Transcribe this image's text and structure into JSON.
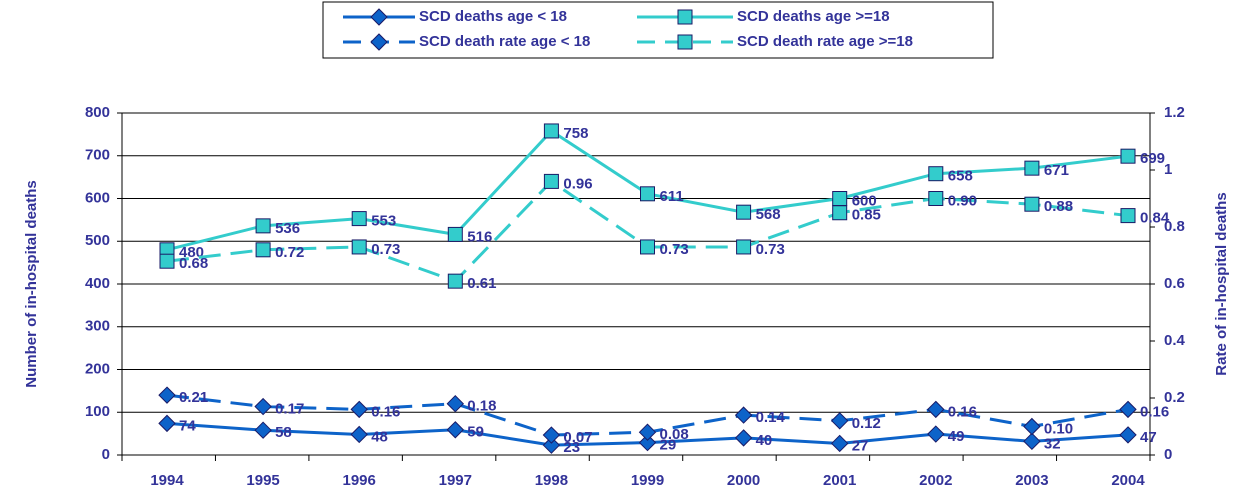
{
  "chart_data": {
    "type": "line",
    "categories": [
      "1994",
      "1995",
      "1996",
      "1997",
      "1998",
      "1999",
      "2000",
      "2001",
      "2002",
      "2003",
      "2004"
    ],
    "ylabel": "Number of in-hospital deaths",
    "y2label": "Rate of in-hospital deaths",
    "ylim": [
      0,
      800
    ],
    "yticks": [
      0,
      100,
      200,
      300,
      400,
      500,
      600,
      700,
      800
    ],
    "y2lim": [
      0,
      1.2
    ],
    "y2ticks": [
      0,
      0.2,
      0.4,
      0.6,
      0.8,
      1,
      1.2
    ],
    "grid": true,
    "legend": "top",
    "series": [
      {
        "name": "SCD deaths age < 18",
        "color": "#0d63c9",
        "line_style": "solid",
        "marker": "diamond",
        "values": [
          74,
          58,
          48,
          59,
          23,
          29,
          40,
          27,
          49,
          32,
          47
        ]
      },
      {
        "name": "SCD deaths age >=18",
        "color": "#33cccc",
        "line_style": "solid",
        "marker": "square",
        "values": [
          480,
          536,
          553,
          516,
          758,
          611,
          568,
          600,
          658,
          671,
          699
        ]
      },
      {
        "name": "SCD death rate age < 18",
        "color": "#0d63c9",
        "line_style": "dashed",
        "marker": "diamond",
        "axis": "y2",
        "values": [
          0.21,
          0.17,
          0.16,
          0.18,
          0.07,
          0.08,
          0.14,
          0.12,
          0.16,
          0.1,
          0.16
        ],
        "value_labels": [
          "0.21",
          "0.17",
          "0.16",
          "0.18",
          "0.07",
          "0.08",
          "0.14",
          "0.12",
          "0.16",
          "0.10",
          "0.16"
        ]
      },
      {
        "name": "SCD death rate age >=18",
        "color": "#33cccc",
        "line_style": "dashed",
        "marker": "square",
        "axis": "y2",
        "values": [
          0.68,
          0.72,
          0.73,
          0.61,
          0.96,
          0.73,
          0.73,
          0.85,
          0.9,
          0.88,
          0.84
        ],
        "value_labels": [
          "0.68",
          "0.72",
          "0.73",
          "0.61",
          "0.96",
          "0.73",
          "0.73",
          "0.85",
          "0.90",
          "0.88",
          "0.84"
        ]
      }
    ]
  }
}
